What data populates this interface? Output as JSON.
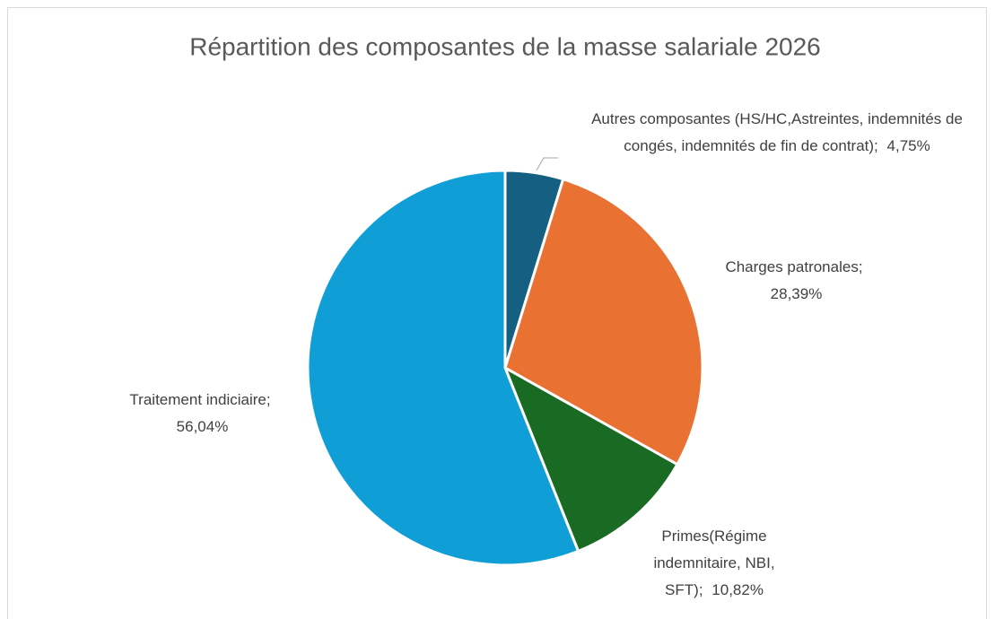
{
  "chart_data": {
    "type": "pie",
    "title": "Répartition des composantes de la masse salariale 2026",
    "categories": [
      "Autres composantes (HS/HC,Astreintes, indemnités de congés, indemnités de fin de contrat);",
      "Charges patronales;",
      "Primes(Régime indemnitaire, NBI, SFT);",
      "Traitement indiciaire;"
    ],
    "values": [
      4.75,
      28.39,
      10.82,
      56.04
    ],
    "value_labels": [
      "4,75%",
      "28,39%",
      "10,82%",
      "56,04%"
    ],
    "colors": [
      "#156082",
      "#e97132",
      "#196b24",
      "#0f9ed5"
    ]
  }
}
